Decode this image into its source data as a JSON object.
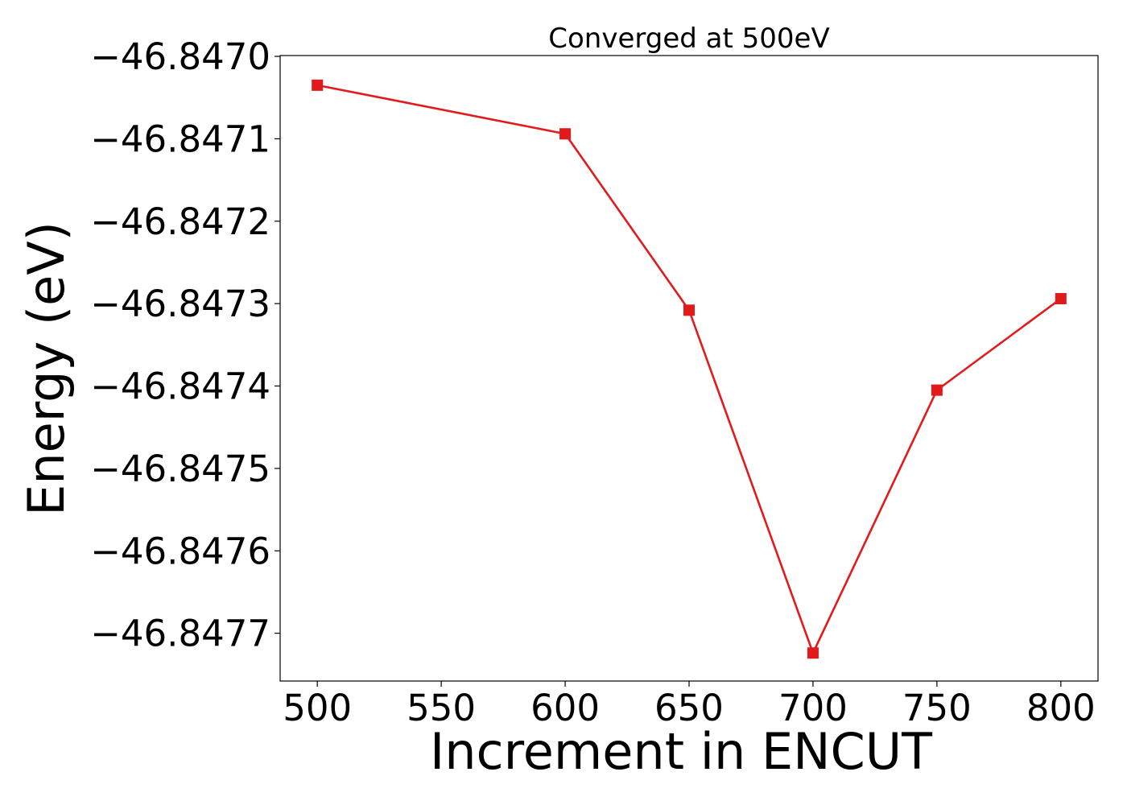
{
  "chart_data": {
    "type": "line",
    "title": "Converged at 500eV",
    "xlabel": "Increment in ENCUT",
    "ylabel": "Energy (eV)",
    "x": [
      500,
      600,
      650,
      700,
      750,
      800
    ],
    "series": [
      {
        "values": [
          -46.847035,
          -46.847094,
          -46.847308,
          -46.847724,
          -46.847405,
          -46.847294
        ],
        "color": "#e31a1c",
        "marker": "square"
      }
    ],
    "xticks": [
      500,
      550,
      600,
      650,
      700,
      750,
      800
    ],
    "xtick_labels": [
      "500",
      "550",
      "600",
      "650",
      "700",
      "750",
      "800"
    ],
    "yticks": [
      -46.847,
      -46.8471,
      -46.8472,
      -46.8473,
      -46.8474,
      -46.8475,
      -46.8476,
      -46.8477
    ],
    "ytick_labels": [
      "−46.8470",
      "−46.8471",
      "−46.8472",
      "−46.8473",
      "−46.8474",
      "−46.8475",
      "−46.8476",
      "−46.8477"
    ],
    "xlim": [
      485,
      815
    ],
    "ylim": [
      -46.847758,
      -46.846999
    ],
    "grid": false,
    "legend": "none"
  }
}
